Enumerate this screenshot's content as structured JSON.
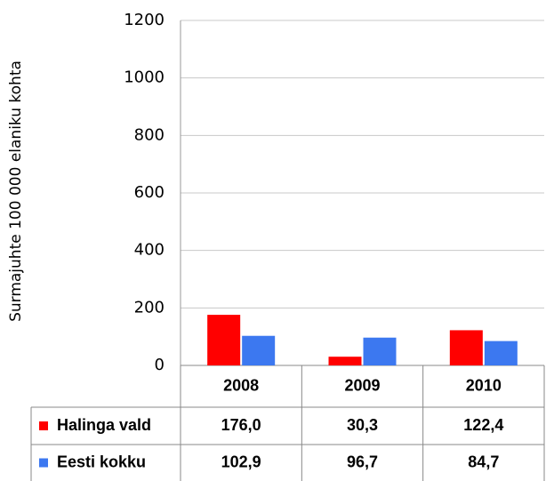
{
  "chart_data": {
    "type": "bar",
    "y_label": "Surmajuhte 100 000 elaniku kohta",
    "categories": [
      "2008",
      "2009",
      "2010"
    ],
    "series": [
      {
        "name": "Halinga vald",
        "color": "#ff0000",
        "values": [
          176.0,
          30.3,
          122.4
        ],
        "value_labels": [
          "176,0",
          "30,3",
          "122,4"
        ]
      },
      {
        "name": "Eesti kokku",
        "color": "#3c78f0",
        "values": [
          102.9,
          96.7,
          84.7
        ],
        "value_labels": [
          "102,9",
          "96,7",
          "84,7"
        ]
      }
    ],
    "ylim": [
      0,
      1200
    ],
    "yticks": [
      0,
      200,
      400,
      600,
      800,
      1000,
      1200
    ],
    "grid": true
  }
}
